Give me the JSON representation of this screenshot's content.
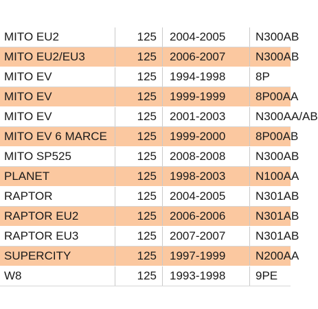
{
  "rows": [
    {
      "model": "MITO EU2",
      "cc": "125",
      "years": "2004-2005",
      "code": "N300AB",
      "highlight": false
    },
    {
      "model": "MITO EU2/EU3",
      "cc": "125",
      "years": "2006-2007",
      "code": "N300AB",
      "highlight": true
    },
    {
      "model": "MITO EV",
      "cc": "125",
      "years": "1994-1998",
      "code": "8P",
      "highlight": false
    },
    {
      "model": "MITO EV",
      "cc": "125",
      "years": "1999-1999",
      "code": "8P00AA",
      "highlight": true
    },
    {
      "model": "MITO EV",
      "cc": "125",
      "years": "2001-2003",
      "code": "N300AA/AB",
      "highlight": false
    },
    {
      "model": "MITO EV 6 MARCE",
      "cc": "125",
      "years": "1999-2000",
      "code": "8P00AB",
      "highlight": true
    },
    {
      "model": "MITO SP525",
      "cc": "125",
      "years": "2008-2008",
      "code": "N300AB",
      "highlight": false
    },
    {
      "model": "PLANET",
      "cc": "125",
      "years": "1998-2003",
      "code": "N100AA",
      "highlight": true
    },
    {
      "model": "RAPTOR",
      "cc": "125",
      "years": "2004-2005",
      "code": "N301AB",
      "highlight": false
    },
    {
      "model": "RAPTOR EU2",
      "cc": "125",
      "years": "2006-2006",
      "code": "N301AB",
      "highlight": true
    },
    {
      "model": "RAPTOR EU3",
      "cc": "125",
      "years": "2007-2007",
      "code": "N301AB",
      "highlight": false
    },
    {
      "model": "SUPERCITY",
      "cc": "125",
      "years": "1997-1999",
      "code": "N200AA",
      "highlight": true
    },
    {
      "model": "W8",
      "cc": "125",
      "years": "1993-1998",
      "code": "9PE",
      "highlight": false
    }
  ],
  "colors": {
    "highlight_row": "#fbc8a0",
    "text": "#1a1a1a",
    "grid_line": "#c9c9c9"
  }
}
